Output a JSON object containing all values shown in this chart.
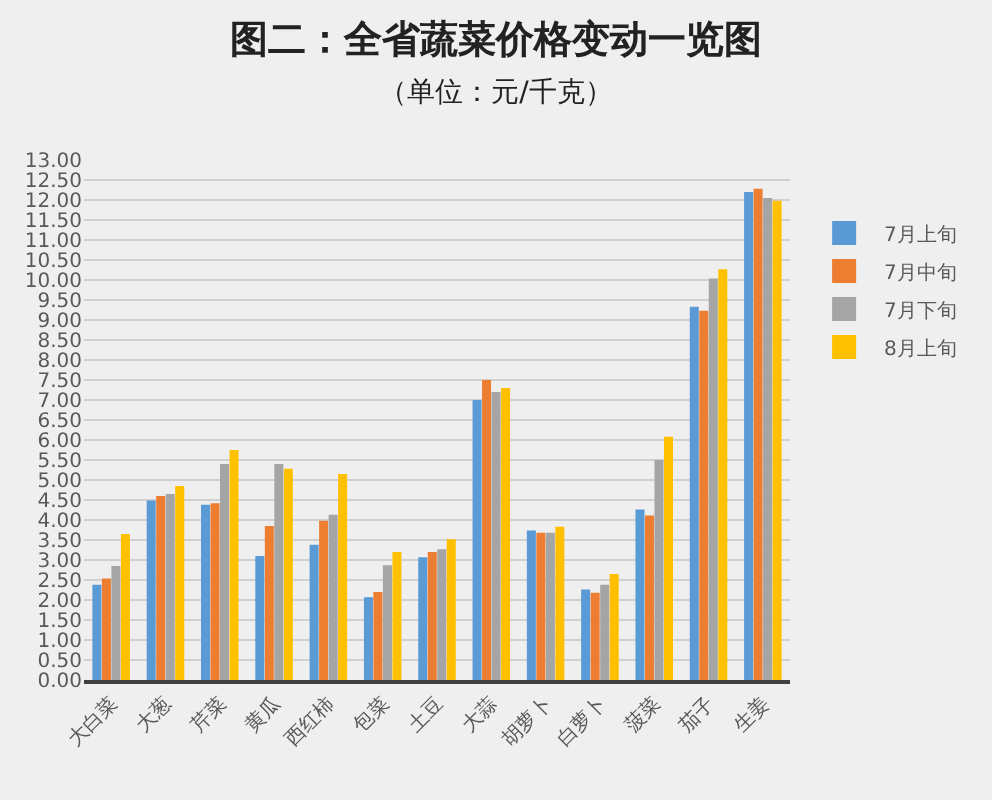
{
  "chart_data": {
    "type": "bar",
    "title": "图二：全省蔬菜价格变动一览图",
    "subtitle": "（单位：元/千克）",
    "categories": [
      "大白菜",
      "大葱",
      "芹菜",
      "黄瓜",
      "西红柿",
      "包菜",
      "土豆",
      "大蒜",
      "胡萝卜",
      "白萝卜",
      "菠菜",
      "茄子",
      "生姜"
    ],
    "series": [
      {
        "name": "7月上旬",
        "color": "#5b9bd5",
        "values": [
          2.38,
          4.49,
          4.38,
          3.1,
          3.38,
          2.07,
          3.07,
          7.0,
          3.74,
          2.26,
          4.26,
          9.33,
          12.2
        ]
      },
      {
        "name": "7月中旬",
        "color": "#ed7d31",
        "values": [
          2.54,
          4.6,
          4.42,
          3.85,
          3.98,
          2.2,
          3.2,
          7.5,
          3.68,
          2.18,
          4.11,
          9.23,
          12.28
        ]
      },
      {
        "name": "7月下旬",
        "color": "#a5a5a5",
        "values": [
          2.85,
          4.65,
          5.4,
          5.4,
          4.13,
          2.87,
          3.27,
          7.2,
          3.68,
          2.38,
          5.5,
          10.04,
          12.05
        ]
      },
      {
        "name": "8月上旬",
        "color": "#ffc000",
        "values": [
          3.65,
          4.85,
          5.75,
          5.28,
          5.15,
          3.2,
          3.52,
          7.3,
          3.83,
          2.65,
          6.08,
          10.27,
          11.98
        ]
      }
    ],
    "ylim": [
      0,
      13
    ],
    "yticks": [
      {
        "value": 0,
        "label": "0.00"
      },
      {
        "value": 0.5,
        "label": "0.50"
      },
      {
        "value": 1,
        "label": "1.00"
      },
      {
        "value": 1.5,
        "label": "1.50"
      },
      {
        "value": 2,
        "label": "2.00"
      },
      {
        "value": 2.5,
        "label": "2.50"
      },
      {
        "value": 3,
        "label": "3.00"
      },
      {
        "value": 3.5,
        "label": "3.50"
      },
      {
        "value": 4,
        "label": "4.00"
      },
      {
        "value": 4.5,
        "label": "4.50"
      },
      {
        "value": 5,
        "label": "5.00"
      },
      {
        "value": 5.5,
        "label": "5.50"
      },
      {
        "value": 6,
        "label": "6.00"
      },
      {
        "value": 6.5,
        "label": "6.50"
      },
      {
        "value": 7,
        "label": "7.00"
      },
      {
        "value": 7.5,
        "label": "7.50"
      },
      {
        "value": 8,
        "label": "8.00"
      },
      {
        "value": 8.5,
        "label": "8.50"
      },
      {
        "value": 9,
        "label": "9.00"
      },
      {
        "value": 9.5,
        "label": "9.50"
      },
      {
        "value": 10,
        "label": "10.00"
      },
      {
        "value": 10.5,
        "label": "10.50"
      },
      {
        "value": 11,
        "label": "11.00"
      },
      {
        "value": 11.5,
        "label": "11.50"
      },
      {
        "value": 12,
        "label": "12.00"
      },
      {
        "value": 12.5,
        "label": "12.50"
      },
      {
        "value": 13,
        "label": "13.00"
      }
    ],
    "grid": "y",
    "legend": "right"
  }
}
